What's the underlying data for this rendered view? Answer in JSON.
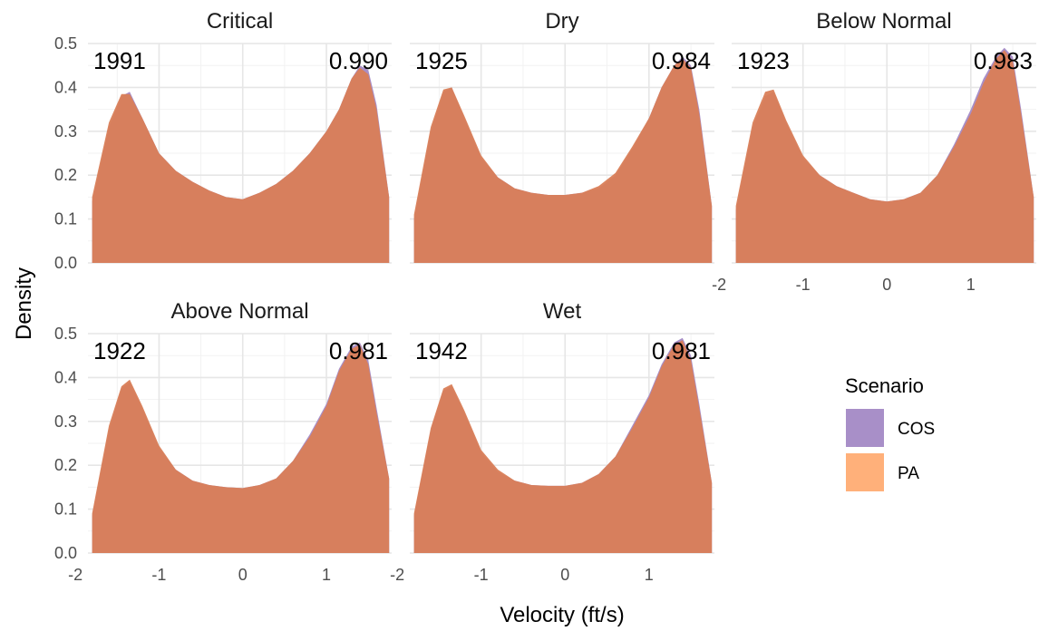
{
  "chart_data": {
    "type": "area",
    "xlabel": "Velocity (ft/s)",
    "ylabel": "Density",
    "xlim": [
      -1.85,
      1.78
    ],
    "ylim": [
      0,
      0.5
    ],
    "x_ticks": [
      -2,
      -1,
      0,
      1
    ],
    "y_ticks": [
      0.0,
      0.1,
      0.2,
      0.3,
      0.4,
      0.5
    ],
    "grid": true,
    "legend": {
      "title": "Scenario",
      "position": "right",
      "entries": [
        {
          "name": "COS",
          "color": "#A88FC8"
        },
        {
          "name": "PA",
          "color": "#FFB07A"
        }
      ]
    },
    "colors": {
      "COS": "#A88FC8",
      "PA": "#FFB07A",
      "overlap": "#D97E57"
    },
    "x": [
      -1.8,
      -1.6,
      -1.45,
      -1.35,
      -1.2,
      -1.0,
      -0.8,
      -0.6,
      -0.4,
      -0.2,
      0.0,
      0.2,
      0.4,
      0.6,
      0.8,
      1.0,
      1.15,
      1.3,
      1.4,
      1.5,
      1.6,
      1.75
    ],
    "panels": [
      {
        "title": "Critical",
        "year": "1991",
        "value": "0.990",
        "series": [
          {
            "name": "COS",
            "values": [
              0.14,
              0.31,
              0.38,
              0.39,
              0.33,
              0.25,
              0.21,
              0.185,
              0.165,
              0.15,
              0.145,
              0.16,
              0.18,
              0.21,
              0.25,
              0.3,
              0.35,
              0.42,
              0.45,
              0.44,
              0.36,
              0.15
            ]
          },
          {
            "name": "PA",
            "values": [
              0.15,
              0.32,
              0.385,
              0.385,
              0.33,
              0.25,
              0.21,
              0.185,
              0.165,
              0.15,
              0.145,
              0.16,
              0.18,
              0.21,
              0.25,
              0.3,
              0.35,
              0.42,
              0.445,
              0.43,
              0.35,
              0.15
            ]
          }
        ]
      },
      {
        "title": "Dry",
        "year": "1925",
        "value": "0.984",
        "series": [
          {
            "name": "COS",
            "values": [
              0.1,
              0.3,
              0.39,
              0.4,
              0.33,
              0.24,
              0.195,
              0.17,
              0.16,
              0.155,
              0.155,
              0.16,
              0.17,
              0.2,
              0.26,
              0.33,
              0.4,
              0.45,
              0.47,
              0.45,
              0.35,
              0.13
            ]
          },
          {
            "name": "PA",
            "values": [
              0.11,
              0.31,
              0.395,
              0.4,
              0.335,
              0.245,
              0.195,
              0.17,
              0.16,
              0.155,
              0.155,
              0.16,
              0.175,
              0.205,
              0.265,
              0.33,
              0.4,
              0.45,
              0.465,
              0.445,
              0.34,
              0.13
            ]
          }
        ]
      },
      {
        "title": "Below Normal",
        "year": "1923",
        "value": "0.983",
        "series": [
          {
            "name": "COS",
            "values": [
              0.12,
              0.31,
              0.38,
              0.39,
              0.32,
              0.24,
              0.2,
              0.175,
              0.16,
              0.145,
              0.14,
              0.145,
              0.16,
              0.2,
              0.27,
              0.35,
              0.42,
              0.47,
              0.49,
              0.47,
              0.35,
              0.15
            ]
          },
          {
            "name": "PA",
            "values": [
              0.13,
              0.32,
              0.39,
              0.395,
              0.325,
              0.245,
              0.2,
              0.175,
              0.16,
              0.145,
              0.14,
              0.145,
              0.16,
              0.2,
              0.265,
              0.34,
              0.41,
              0.465,
              0.485,
              0.46,
              0.34,
              0.15
            ]
          }
        ]
      },
      {
        "title": "Above Normal",
        "year": "1922",
        "value": "0.981",
        "series": [
          {
            "name": "COS",
            "values": [
              0.085,
              0.28,
              0.375,
              0.39,
              0.33,
              0.24,
              0.19,
              0.165,
              0.155,
              0.15,
              0.148,
              0.155,
              0.17,
              0.21,
              0.27,
              0.34,
              0.42,
              0.47,
              0.48,
              0.44,
              0.33,
              0.17
            ]
          },
          {
            "name": "PA",
            "values": [
              0.09,
              0.29,
              0.38,
              0.395,
              0.335,
              0.245,
              0.19,
              0.165,
              0.155,
              0.15,
              0.148,
              0.155,
              0.17,
              0.21,
              0.265,
              0.335,
              0.415,
              0.465,
              0.475,
              0.43,
              0.32,
              0.17
            ]
          }
        ]
      },
      {
        "title": "Wet",
        "year": "1942",
        "value": "0.981",
        "series": [
          {
            "name": "COS",
            "values": [
              0.085,
              0.28,
              0.37,
              0.38,
              0.32,
              0.23,
              0.185,
              0.165,
              0.155,
              0.153,
              0.153,
              0.16,
              0.18,
              0.22,
              0.29,
              0.36,
              0.43,
              0.48,
              0.49,
              0.45,
              0.34,
              0.16
            ]
          },
          {
            "name": "PA",
            "values": [
              0.09,
              0.285,
              0.375,
              0.385,
              0.325,
              0.235,
              0.19,
              0.165,
              0.155,
              0.153,
              0.153,
              0.16,
              0.18,
              0.22,
              0.285,
              0.355,
              0.425,
              0.475,
              0.485,
              0.44,
              0.33,
              0.16
            ]
          }
        ]
      }
    ]
  }
}
